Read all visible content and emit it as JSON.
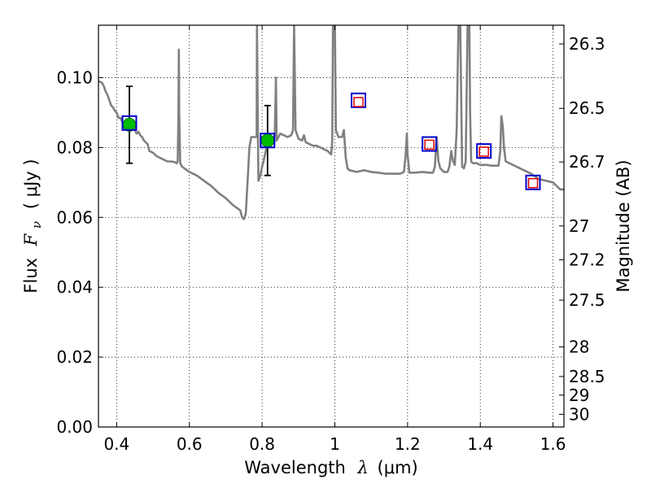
{
  "chart_data": {
    "type": "line",
    "xlabel_text": "Wavelength",
    "xlabel_symbol": "λ",
    "xlabel_unit": "(μm)",
    "ylabel_text": "Flux",
    "ylabel_symbol": "F",
    "ylabel_symbol_sub": "ν",
    "ylabel_unit": "( μJy )",
    "y2label": "Magnitude (AB)",
    "xlim": [
      0.35,
      1.63
    ],
    "ylim": [
      0.0,
      0.115
    ],
    "grid": true,
    "x_ticks": [
      {
        "value": 0.4,
        "label": "0.4"
      },
      {
        "value": 0.6,
        "label": "0.6"
      },
      {
        "value": 0.8,
        "label": "0.8"
      },
      {
        "value": 1.0,
        "label": "1"
      },
      {
        "value": 1.2,
        "label": "1.2"
      },
      {
        "value": 1.4,
        "label": "1.4"
      },
      {
        "value": 1.6,
        "label": "1.6"
      }
    ],
    "y_ticks": [
      {
        "value": 0.0,
        "label": "0.00"
      },
      {
        "value": 0.02,
        "label": "0.02"
      },
      {
        "value": 0.04,
        "label": "0.04"
      },
      {
        "value": 0.06,
        "label": "0.06"
      },
      {
        "value": 0.08,
        "label": "0.08"
      },
      {
        "value": 0.1,
        "label": "0.10"
      }
    ],
    "y2_ticks": [
      {
        "value": 26.3,
        "label": "26.3"
      },
      {
        "value": 26.5,
        "label": "26.5"
      },
      {
        "value": 26.7,
        "label": "26.7"
      },
      {
        "value": 27.0,
        "label": "27"
      },
      {
        "value": 27.2,
        "label": "27.2"
      },
      {
        "value": 27.5,
        "label": "27.5"
      },
      {
        "value": 28.0,
        "label": "28"
      },
      {
        "value": 28.5,
        "label": "28.5"
      },
      {
        "value": 29.0,
        "label": "29"
      },
      {
        "value": 30.0,
        "label": "30"
      }
    ],
    "series": [
      {
        "name": "model-spectrum",
        "kind": "line",
        "color": "#808080",
        "points": [
          [
            0.35,
            0.099
          ],
          [
            0.36,
            0.0985
          ],
          [
            0.365,
            0.0975
          ],
          [
            0.37,
            0.096
          ],
          [
            0.375,
            0.095
          ],
          [
            0.38,
            0.0935
          ],
          [
            0.385,
            0.092
          ],
          [
            0.39,
            0.0915
          ],
          [
            0.395,
            0.0905
          ],
          [
            0.4,
            0.09
          ],
          [
            0.405,
            0.0885
          ],
          [
            0.41,
            0.0885
          ],
          [
            0.415,
            0.0875
          ],
          [
            0.42,
            0.087
          ],
          [
            0.425,
            0.0865
          ],
          [
            0.43,
            0.0865
          ],
          [
            0.435,
            0.087
          ],
          [
            0.44,
            0.086
          ],
          [
            0.445,
            0.0855
          ],
          [
            0.45,
            0.085
          ],
          [
            0.455,
            0.084
          ],
          [
            0.46,
            0.0845
          ],
          [
            0.465,
            0.0835
          ],
          [
            0.47,
            0.083
          ],
          [
            0.475,
            0.082
          ],
          [
            0.48,
            0.0815
          ],
          [
            0.485,
            0.081
          ],
          [
            0.49,
            0.079
          ],
          [
            0.5,
            0.0785
          ],
          [
            0.51,
            0.0775
          ],
          [
            0.52,
            0.077
          ],
          [
            0.53,
            0.0765
          ],
          [
            0.54,
            0.076
          ],
          [
            0.55,
            0.076
          ],
          [
            0.56,
            0.0758
          ],
          [
            0.565,
            0.0755
          ],
          [
            0.568,
            0.076
          ],
          [
            0.57,
            0.09
          ],
          [
            0.571,
            0.108
          ],
          [
            0.572,
            0.09
          ],
          [
            0.575,
            0.0755
          ],
          [
            0.58,
            0.0745
          ],
          [
            0.6,
            0.073
          ],
          [
            0.62,
            0.072
          ],
          [
            0.64,
            0.0705
          ],
          [
            0.66,
            0.069
          ],
          [
            0.68,
            0.067
          ],
          [
            0.7,
            0.0655
          ],
          [
            0.72,
            0.0635
          ],
          [
            0.74,
            0.062
          ],
          [
            0.745,
            0.06
          ],
          [
            0.75,
            0.0595
          ],
          [
            0.755,
            0.061
          ],
          [
            0.76,
            0.07
          ],
          [
            0.765,
            0.08
          ],
          [
            0.77,
            0.083
          ],
          [
            0.775,
            0.083
          ],
          [
            0.78,
            0.083
          ],
          [
            0.785,
            0.083
          ],
          [
            0.786,
            0.115
          ],
          [
            0.788,
            0.09
          ],
          [
            0.79,
            0.0705
          ],
          [
            0.795,
            0.072
          ],
          [
            0.8,
            0.0745
          ],
          [
            0.805,
            0.0765
          ],
          [
            0.81,
            0.079
          ],
          [
            0.815,
            0.0815
          ],
          [
            0.82,
            0.0825
          ],
          [
            0.825,
            0.083
          ],
          [
            0.83,
            0.082
          ],
          [
            0.835,
            0.084
          ],
          [
            0.838,
            0.1
          ],
          [
            0.84,
            0.082
          ],
          [
            0.85,
            0.084
          ],
          [
            0.86,
            0.0835
          ],
          [
            0.87,
            0.083
          ],
          [
            0.88,
            0.0835
          ],
          [
            0.885,
            0.085
          ],
          [
            0.888,
            0.115
          ],
          [
            0.892,
            0.085
          ],
          [
            0.9,
            0.0825
          ],
          [
            0.91,
            0.082
          ],
          [
            0.915,
            0.0835
          ],
          [
            0.92,
            0.0815
          ],
          [
            0.93,
            0.081
          ],
          [
            0.94,
            0.0805
          ],
          [
            0.95,
            0.0805
          ],
          [
            0.96,
            0.08
          ],
          [
            0.97,
            0.0795
          ],
          [
            0.98,
            0.079
          ],
          [
            0.99,
            0.078
          ],
          [
            0.993,
            0.082
          ],
          [
            0.995,
            0.115
          ],
          [
            1.0,
            0.115
          ],
          [
            1.003,
            0.085
          ],
          [
            1.01,
            0.083
          ],
          [
            1.02,
            0.083
          ],
          [
            1.025,
            0.085
          ],
          [
            1.03,
            0.077
          ],
          [
            1.035,
            0.074
          ],
          [
            1.04,
            0.0735
          ],
          [
            1.06,
            0.073
          ],
          [
            1.08,
            0.0735
          ],
          [
            1.1,
            0.073
          ],
          [
            1.12,
            0.0728
          ],
          [
            1.14,
            0.0725
          ],
          [
            1.16,
            0.0725
          ],
          [
            1.18,
            0.0725
          ],
          [
            1.19,
            0.073
          ],
          [
            1.195,
            0.078
          ],
          [
            1.198,
            0.084
          ],
          [
            1.2,
            0.078
          ],
          [
            1.205,
            0.0728
          ],
          [
            1.22,
            0.0728
          ],
          [
            1.24,
            0.073
          ],
          [
            1.26,
            0.0728
          ],
          [
            1.27,
            0.0728
          ],
          [
            1.275,
            0.0745
          ],
          [
            1.28,
            0.083
          ],
          [
            1.285,
            0.076
          ],
          [
            1.29,
            0.074
          ],
          [
            1.3,
            0.073
          ],
          [
            1.31,
            0.073
          ],
          [
            1.315,
            0.0745
          ],
          [
            1.32,
            0.079
          ],
          [
            1.325,
            0.076
          ],
          [
            1.33,
            0.075
          ],
          [
            1.335,
            0.085
          ],
          [
            1.34,
            0.115
          ],
          [
            1.345,
            0.115
          ],
          [
            1.348,
            0.09
          ],
          [
            1.35,
            0.0745
          ],
          [
            1.355,
            0.074
          ],
          [
            1.36,
            0.076
          ],
          [
            1.365,
            0.115
          ],
          [
            1.37,
            0.115
          ],
          [
            1.372,
            0.09
          ],
          [
            1.375,
            0.076
          ],
          [
            1.38,
            0.0755
          ],
          [
            1.39,
            0.0755
          ],
          [
            1.4,
            0.075
          ],
          [
            1.41,
            0.075
          ],
          [
            1.42,
            0.075
          ],
          [
            1.43,
            0.0748
          ],
          [
            1.44,
            0.0748
          ],
          [
            1.45,
            0.0748
          ],
          [
            1.455,
            0.079
          ],
          [
            1.458,
            0.089
          ],
          [
            1.462,
            0.086
          ],
          [
            1.465,
            0.08
          ],
          [
            1.47,
            0.076
          ],
          [
            1.48,
            0.0755
          ],
          [
            1.5,
            0.0745
          ],
          [
            1.52,
            0.0735
          ],
          [
            1.54,
            0.0725
          ],
          [
            1.56,
            0.071
          ],
          [
            1.58,
            0.0705
          ],
          [
            1.6,
            0.07
          ],
          [
            1.62,
            0.068
          ],
          [
            1.63,
            0.068
          ]
        ]
      },
      {
        "name": "observed-photometry",
        "kind": "points-with-errorbars",
        "marker": "circle",
        "color": "#00bb00",
        "points": [
          {
            "x": 0.435,
            "y": 0.0865,
            "yerr_low": 0.0755,
            "yerr_high": 0.0975
          },
          {
            "x": 0.815,
            "y": 0.082,
            "yerr_low": 0.072,
            "yerr_high": 0.092
          }
        ]
      },
      {
        "name": "model-photometry",
        "kind": "points",
        "marker": "square-blue",
        "color": "#0000cc",
        "points": [
          {
            "x": 0.435,
            "y": 0.087
          },
          {
            "x": 0.815,
            "y": 0.082
          },
          {
            "x": 1.065,
            "y": 0.0935
          },
          {
            "x": 1.26,
            "y": 0.081
          },
          {
            "x": 1.41,
            "y": 0.079
          },
          {
            "x": 1.545,
            "y": 0.07
          }
        ]
      },
      {
        "name": "model-photometry-inner",
        "kind": "points",
        "marker": "square-red",
        "color": "#dd0000",
        "points": [
          {
            "x": 1.065,
            "y": 0.093
          },
          {
            "x": 1.26,
            "y": 0.0808
          },
          {
            "x": 1.41,
            "y": 0.0788
          },
          {
            "x": 1.545,
            "y": 0.0698
          }
        ]
      }
    ]
  }
}
